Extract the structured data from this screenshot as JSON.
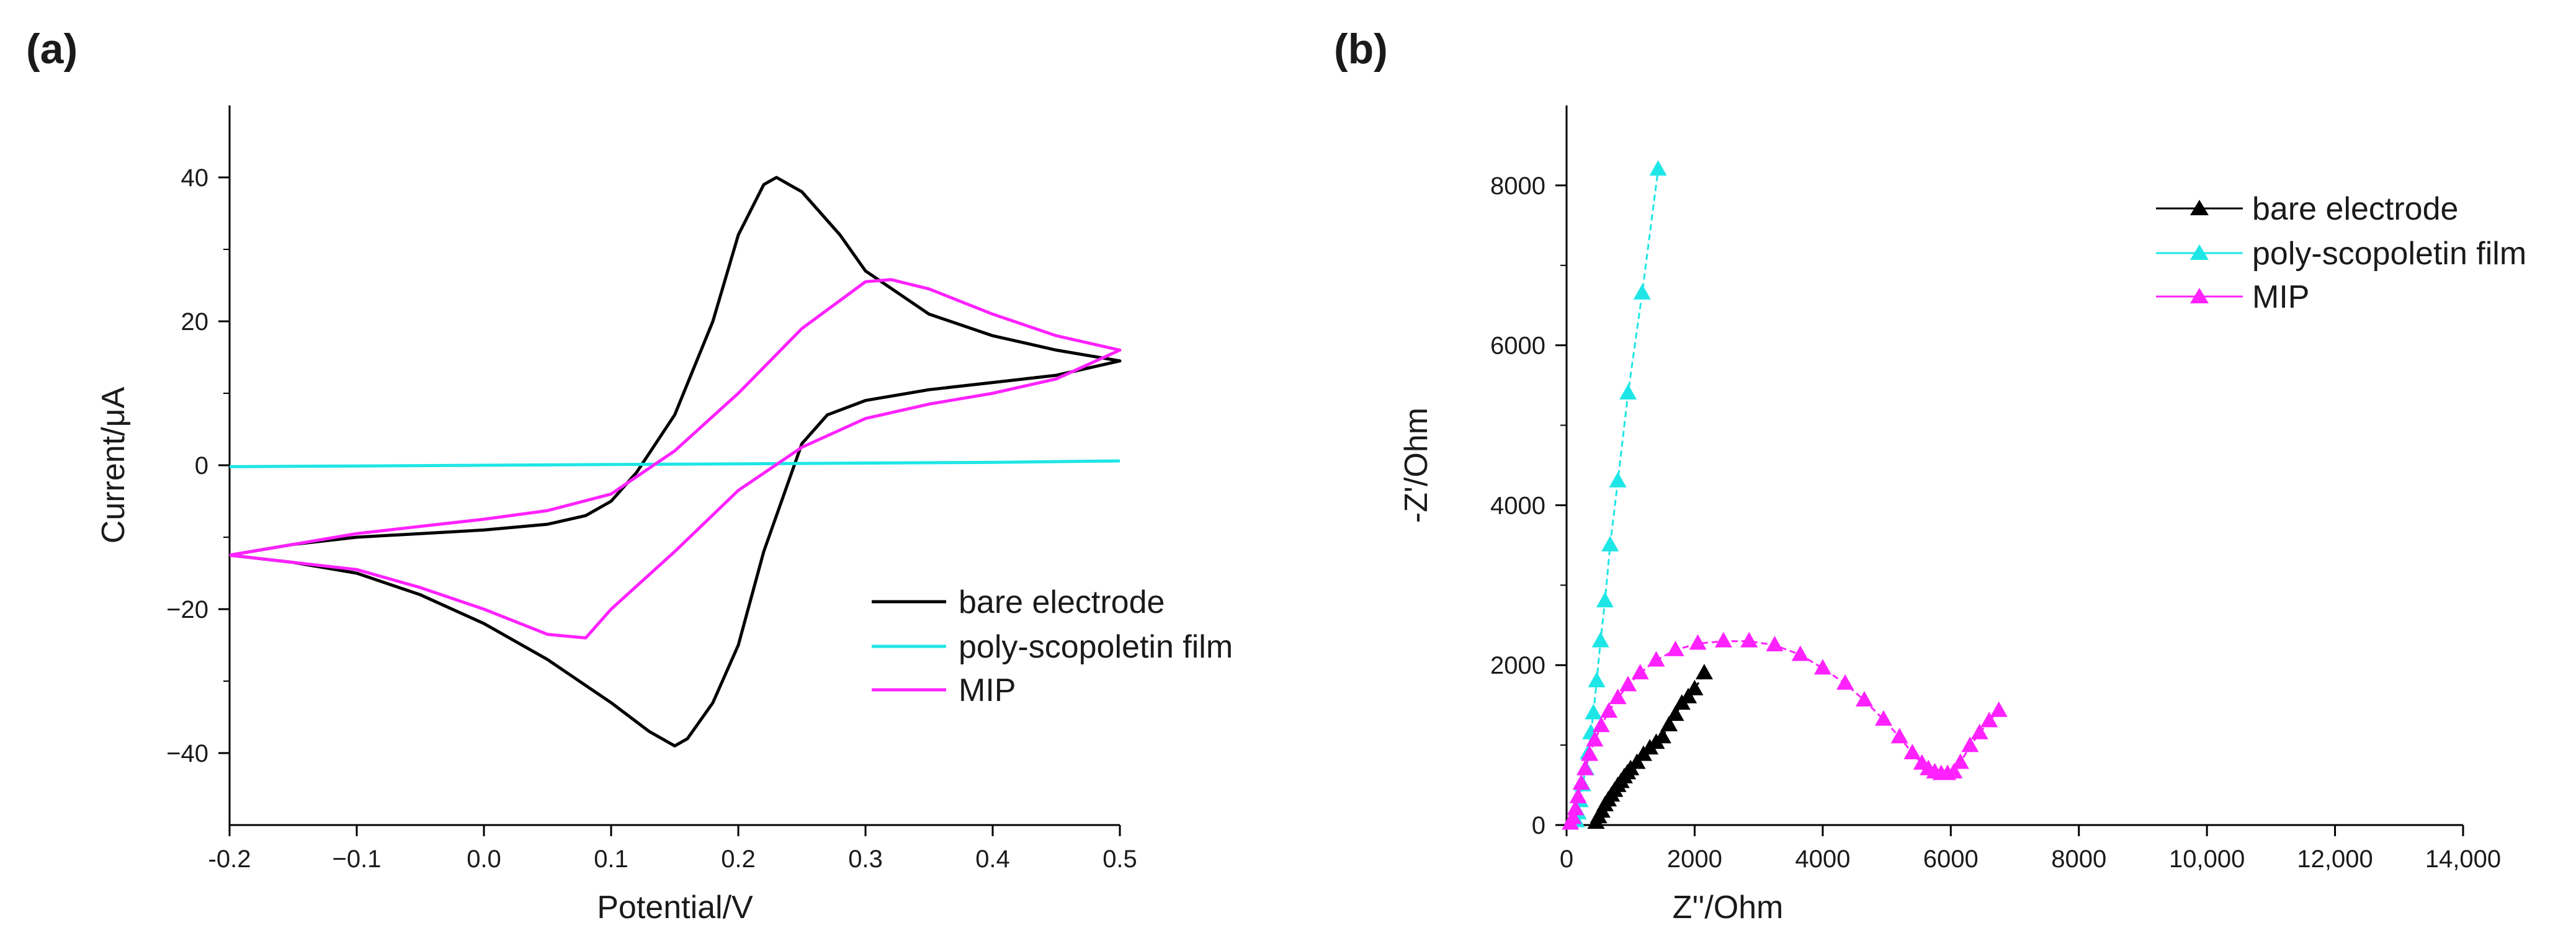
{
  "chart_data": [
    {
      "panel": "(a)",
      "type": "line",
      "xlabel": "Potential/V",
      "ylabel": "Current/μA",
      "xlim": [
        -0.2,
        0.5
      ],
      "ylim": [
        -50,
        50
      ],
      "xticks": [
        -0.2,
        -0.1,
        0.0,
        0.1,
        0.2,
        0.3,
        0.4,
        0.5
      ],
      "xtick_labels": [
        "-0.2",
        "−0.1",
        "0.0",
        "0.1",
        "0.2",
        "0.3",
        "0.4",
        "0.5"
      ],
      "yticks": [
        -40,
        -20,
        0,
        20,
        40
      ],
      "ytick_labels": [
        "−40",
        "−20",
        "0",
        "20",
        "40"
      ],
      "grid": false,
      "legend_position": "lower-right",
      "series": [
        {
          "name": "bare electrode",
          "color": "#000000",
          "points": [
            [
              -0.2,
              -12.5
            ],
            [
              -0.15,
              -11
            ],
            [
              -0.1,
              -10
            ],
            [
              -0.05,
              -9.5
            ],
            [
              0.0,
              -9
            ],
            [
              0.05,
              -8.2
            ],
            [
              0.08,
              -7
            ],
            [
              0.1,
              -5
            ],
            [
              0.12,
              -1
            ],
            [
              0.15,
              7
            ],
            [
              0.18,
              20
            ],
            [
              0.2,
              32
            ],
            [
              0.22,
              39
            ],
            [
              0.23,
              40
            ],
            [
              0.25,
              38
            ],
            [
              0.28,
              32
            ],
            [
              0.3,
              27
            ],
            [
              0.35,
              21
            ],
            [
              0.4,
              18
            ],
            [
              0.45,
              16
            ],
            [
              0.5,
              14.5
            ],
            [
              0.45,
              12.5
            ],
            [
              0.4,
              11.5
            ],
            [
              0.35,
              10.5
            ],
            [
              0.3,
              9
            ],
            [
              0.27,
              7
            ],
            [
              0.25,
              3
            ],
            [
              0.24,
              -2
            ],
            [
              0.22,
              -12
            ],
            [
              0.2,
              -25
            ],
            [
              0.18,
              -33
            ],
            [
              0.16,
              -38
            ],
            [
              0.15,
              -39
            ],
            [
              0.13,
              -37
            ],
            [
              0.1,
              -33
            ],
            [
              0.05,
              -27
            ],
            [
              0.0,
              -22
            ],
            [
              -0.05,
              -18
            ],
            [
              -0.1,
              -15
            ],
            [
              -0.15,
              -13.5
            ],
            [
              -0.2,
              -12.5
            ]
          ]
        },
        {
          "name": "poly-scopoletin film",
          "color": "#1fe6e6",
          "points": [
            [
              -0.2,
              -0.2
            ],
            [
              -0.1,
              -0.1
            ],
            [
              0.0,
              0.0
            ],
            [
              0.1,
              0.1
            ],
            [
              0.2,
              0.2
            ],
            [
              0.3,
              0.3
            ],
            [
              0.4,
              0.4
            ],
            [
              0.5,
              0.6
            ]
          ]
        },
        {
          "name": "MIP",
          "color": "#ff22ff",
          "points": [
            [
              -0.2,
              -12.5
            ],
            [
              -0.1,
              -9.5
            ],
            [
              0.0,
              -7.5
            ],
            [
              0.05,
              -6.3
            ],
            [
              0.1,
              -4
            ],
            [
              0.15,
              2
            ],
            [
              0.2,
              10
            ],
            [
              0.25,
              19
            ],
            [
              0.3,
              25.5
            ],
            [
              0.32,
              25.8
            ],
            [
              0.35,
              24.5
            ],
            [
              0.4,
              21
            ],
            [
              0.45,
              18
            ],
            [
              0.5,
              16
            ],
            [
              0.45,
              12
            ],
            [
              0.4,
              10
            ],
            [
              0.35,
              8.5
            ],
            [
              0.3,
              6.5
            ],
            [
              0.25,
              2.5
            ],
            [
              0.2,
              -3.5
            ],
            [
              0.15,
              -12
            ],
            [
              0.1,
              -20
            ],
            [
              0.08,
              -24
            ],
            [
              0.05,
              -23.5
            ],
            [
              0.0,
              -20
            ],
            [
              -0.05,
              -17
            ],
            [
              -0.1,
              -14.5
            ],
            [
              -0.15,
              -13.5
            ],
            [
              -0.2,
              -12.5
            ]
          ]
        }
      ]
    },
    {
      "panel": "(b)",
      "type": "scatter",
      "xlabel": "Z''/Ohm",
      "ylabel": "-Z'/Ohm",
      "xlim": [
        0,
        14000
      ],
      "ylim": [
        0,
        9000
      ],
      "xticks": [
        0,
        2000,
        4000,
        6000,
        8000,
        10000,
        12000,
        14000
      ],
      "xtick_labels": [
        "0",
        "2000",
        "4000",
        "6000",
        "8000",
        "10,000",
        "12,000",
        "14,000"
      ],
      "yticks": [
        0,
        2000,
        4000,
        6000,
        8000
      ],
      "ytick_labels": [
        "0",
        "2000",
        "4000",
        "6000",
        "8000"
      ],
      "grid": false,
      "legend_position": "top-right",
      "series": [
        {
          "name": "bare electrode",
          "color": "#000000",
          "points": [
            [
              460,
              30
            ],
            [
              500,
              100
            ],
            [
              550,
              170
            ],
            [
              600,
              250
            ],
            [
              650,
              310
            ],
            [
              700,
              370
            ],
            [
              750,
              430
            ],
            [
              800,
              490
            ],
            [
              850,
              540
            ],
            [
              900,
              600
            ],
            [
              950,
              650
            ],
            [
              1000,
              700
            ],
            [
              1100,
              780
            ],
            [
              1200,
              880
            ],
            [
              1300,
              960
            ],
            [
              1400,
              1030
            ],
            [
              1500,
              1100
            ],
            [
              1600,
              1250
            ],
            [
              1700,
              1380
            ],
            [
              1800,
              1520
            ],
            [
              1900,
              1600
            ],
            [
              2000,
              1700
            ],
            [
              2150,
              1900
            ]
          ]
        },
        {
          "name": "poly-scopoletin film",
          "color": "#1fe6e6",
          "points": [
            [
              150,
              50
            ],
            [
              180,
              150
            ],
            [
              210,
              300
            ],
            [
              250,
              500
            ],
            [
              300,
              700
            ],
            [
              340,
              900
            ],
            [
              380,
              1150
            ],
            [
              420,
              1400
            ],
            [
              470,
              1800
            ],
            [
              530,
              2300
            ],
            [
              600,
              2800
            ],
            [
              680,
              3500
            ],
            [
              800,
              4300
            ],
            [
              960,
              5400
            ],
            [
              1180,
              6650
            ],
            [
              1430,
              8200
            ]
          ]
        },
        {
          "name": "MIP",
          "color": "#ff22ff",
          "points": [
            [
              60,
              20
            ],
            [
              100,
              90
            ],
            [
              140,
              200
            ],
            [
              180,
              350
            ],
            [
              230,
              520
            ],
            [
              290,
              700
            ],
            [
              360,
              880
            ],
            [
              440,
              1060
            ],
            [
              540,
              1240
            ],
            [
              660,
              1420
            ],
            [
              800,
              1590
            ],
            [
              960,
              1750
            ],
            [
              1150,
              1900
            ],
            [
              1400,
              2060
            ],
            [
              1700,
              2190
            ],
            [
              2050,
              2270
            ],
            [
              2450,
              2300
            ],
            [
              2850,
              2300
            ],
            [
              3250,
              2250
            ],
            [
              3650,
              2130
            ],
            [
              4000,
              1960
            ],
            [
              4350,
              1770
            ],
            [
              4650,
              1560
            ],
            [
              4950,
              1320
            ],
            [
              5200,
              1100
            ],
            [
              5400,
              900
            ],
            [
              5550,
              770
            ],
            [
              5650,
              700
            ],
            [
              5750,
              660
            ],
            [
              5850,
              640
            ],
            [
              5950,
              640
            ],
            [
              6050,
              660
            ],
            [
              6150,
              780
            ],
            [
              6300,
              990
            ],
            [
              6450,
              1150
            ],
            [
              6600,
              1300
            ],
            [
              6750,
              1430
            ]
          ]
        }
      ]
    }
  ]
}
